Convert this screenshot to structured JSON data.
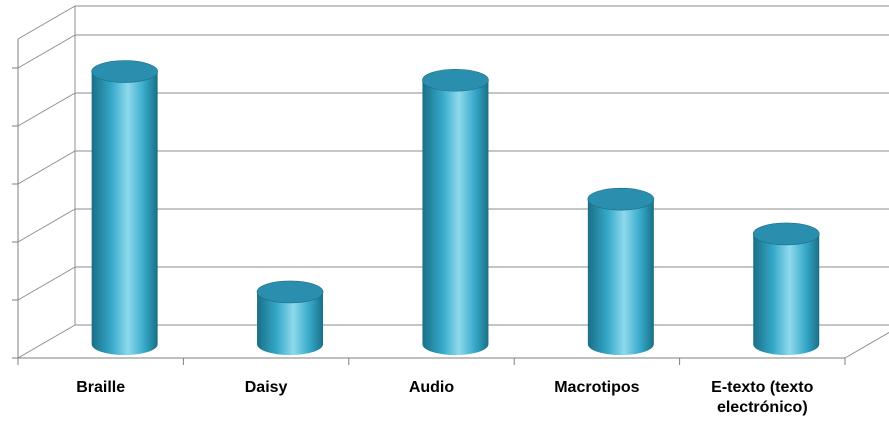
{
  "chart_data": {
    "type": "bar",
    "bar_shape": "cylinder-3d",
    "categories": [
      [
        "Braille"
      ],
      [
        "Daisy"
      ],
      [
        "Audio"
      ],
      [
        "Macrotipos"
      ],
      [
        "E-texto (texto",
        "electrónico)"
      ]
    ],
    "values": [
      4.7,
      0.9,
      4.55,
      2.5,
      1.9
    ],
    "ylim": [
      0,
      5.5
    ],
    "y_tick_labels": [],
    "title": "",
    "xlabel": "",
    "ylabel": "",
    "grid": true,
    "legend": "none",
    "colors": {
      "bar": "#35a8c9",
      "bar_dark": "#1a6f86",
      "bar_light": "#8fd9ec",
      "bar_top": "#2a8fae",
      "gridline": "#8c8c8c",
      "axis": "#7f7f7f"
    }
  }
}
